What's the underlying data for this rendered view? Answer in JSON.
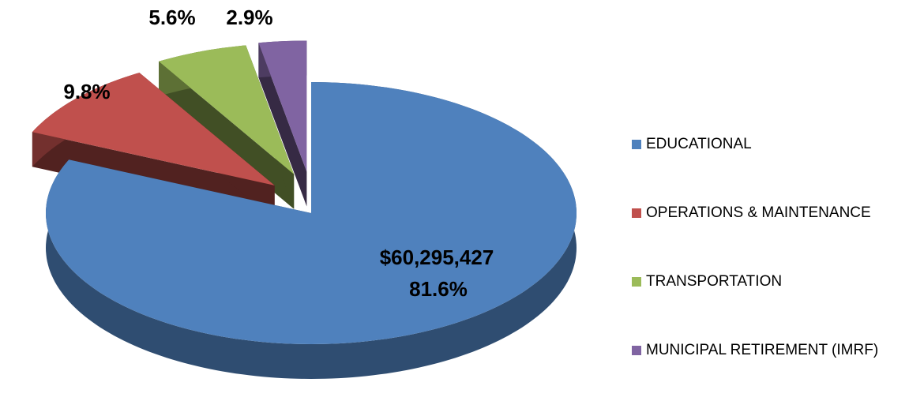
{
  "chart_data": {
    "type": "pie",
    "categories": [
      "EDUCATIONAL",
      "OPERATIONS & MAINTENANCE",
      "TRANSPORTATION",
      "MUNICIPAL RETIREMENT (IMRF)"
    ],
    "values": [
      81.6,
      9.8,
      5.6,
      2.9
    ],
    "value_labels": [
      "81.6%",
      "9.8%",
      "5.6%",
      "2.9%"
    ],
    "annotations": [
      {
        "text": "$60,295,427"
      }
    ],
    "colors": [
      "#4f81bd",
      "#c0504d",
      "#9bbb59",
      "#8064a2"
    ],
    "legend": "right"
  }
}
